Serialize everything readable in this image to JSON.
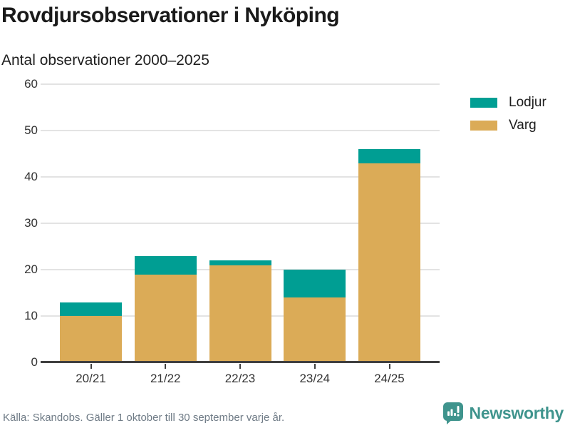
{
  "header": {
    "title": "Rovdjursobservationer i Nyköping",
    "subtitle": "Antal observationer 2000–2025"
  },
  "chart_data": {
    "type": "bar",
    "stacked": true,
    "title": "Rovdjursobservationer i Nyköping",
    "subtitle": "Antal observationer 2000–2025",
    "categories": [
      "20/21",
      "21/22",
      "22/23",
      "23/24",
      "24/25"
    ],
    "series": [
      {
        "name": "Varg",
        "color": "#dbab57",
        "values": [
          10,
          19,
          21,
          14,
          43
        ]
      },
      {
        "name": "Lodjur",
        "color": "#009e93",
        "values": [
          3,
          4,
          1,
          6,
          3
        ]
      }
    ],
    "totals": [
      13,
      23,
      22,
      20,
      46
    ],
    "ylim": [
      0,
      60
    ],
    "yticks": [
      0,
      10,
      20,
      30,
      40,
      50,
      60
    ],
    "grid": true,
    "legend_position": "right"
  },
  "legend": {
    "items": [
      {
        "label": "Lodjur",
        "color": "#009e93"
      },
      {
        "label": "Varg",
        "color": "#dbab57"
      }
    ]
  },
  "footer": {
    "source": "Källa: Skandobs. Gäller 1 oktober till 30 september varje år.",
    "brand": "Newsworthy"
  },
  "colors": {
    "axis": "#404040",
    "grid": "#e3e3e3",
    "tick_label": "#333333",
    "title": "#1a1a1a",
    "source_text": "#6f7b86",
    "brand_teal": "#3f948d"
  }
}
